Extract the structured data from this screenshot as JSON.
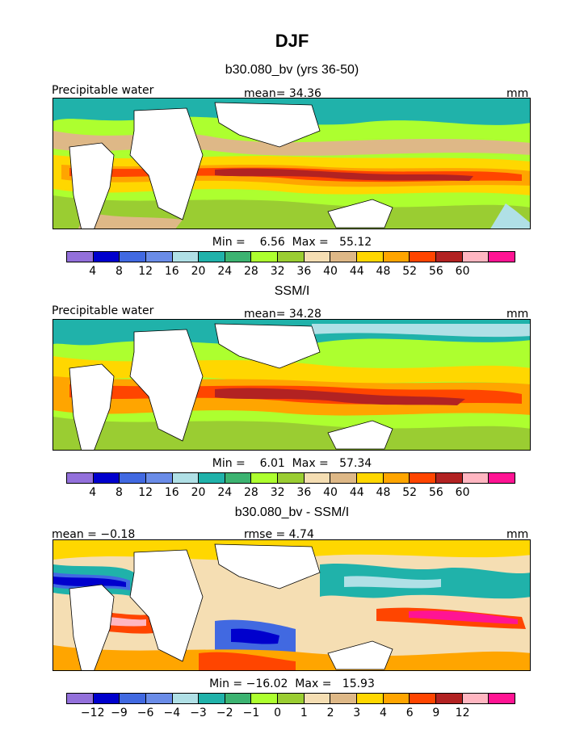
{
  "figure": {
    "title": "DJF"
  },
  "panels": [
    {
      "title": "b30.080_bv (yrs 36-50)",
      "left_label": "Precipitable water",
      "center_label": "mean=   34.36",
      "right_label": "mm",
      "stats": "Min =    6.56  Max =   55.12",
      "colorbar_ticks": [
        "4",
        "8",
        "12",
        "16",
        "20",
        "24",
        "28",
        "32",
        "36",
        "40",
        "44",
        "48",
        "52",
        "56",
        "60"
      ]
    },
    {
      "title": "SSM/I",
      "left_label": "Precipitable water",
      "center_label": "mean=   34.28",
      "right_label": "mm",
      "stats": "Min =    6.01  Max =   57.34",
      "colorbar_ticks": [
        "4",
        "8",
        "12",
        "16",
        "20",
        "24",
        "28",
        "32",
        "36",
        "40",
        "44",
        "48",
        "52",
        "56",
        "60"
      ]
    },
    {
      "title": "b30.080_bv - SSM/I",
      "left_label": "mean =  −0.18",
      "center_label": "rmse =   4.74",
      "right_label": "mm",
      "stats": "Min = −16.02  Max =   15.93",
      "colorbar_ticks": [
        "−12",
        "−9",
        "−6",
        "−4",
        "−3",
        "−2",
        "−1",
        "0",
        "1",
        "2",
        "3",
        "4",
        "6",
        "9",
        "12"
      ]
    }
  ],
  "colors": {
    "palette": [
      "#9370db",
      "#0000cd",
      "#4169e1",
      "#6a8ce8",
      "#b0e0e6",
      "#20b2aa",
      "#3cb371",
      "#adff2f",
      "#9acd32",
      "#f5deb3",
      "#deb887",
      "#ffd700",
      "#ffa500",
      "#ff4500",
      "#b22222",
      "#ffb6c1",
      "#ff1493"
    ]
  }
}
